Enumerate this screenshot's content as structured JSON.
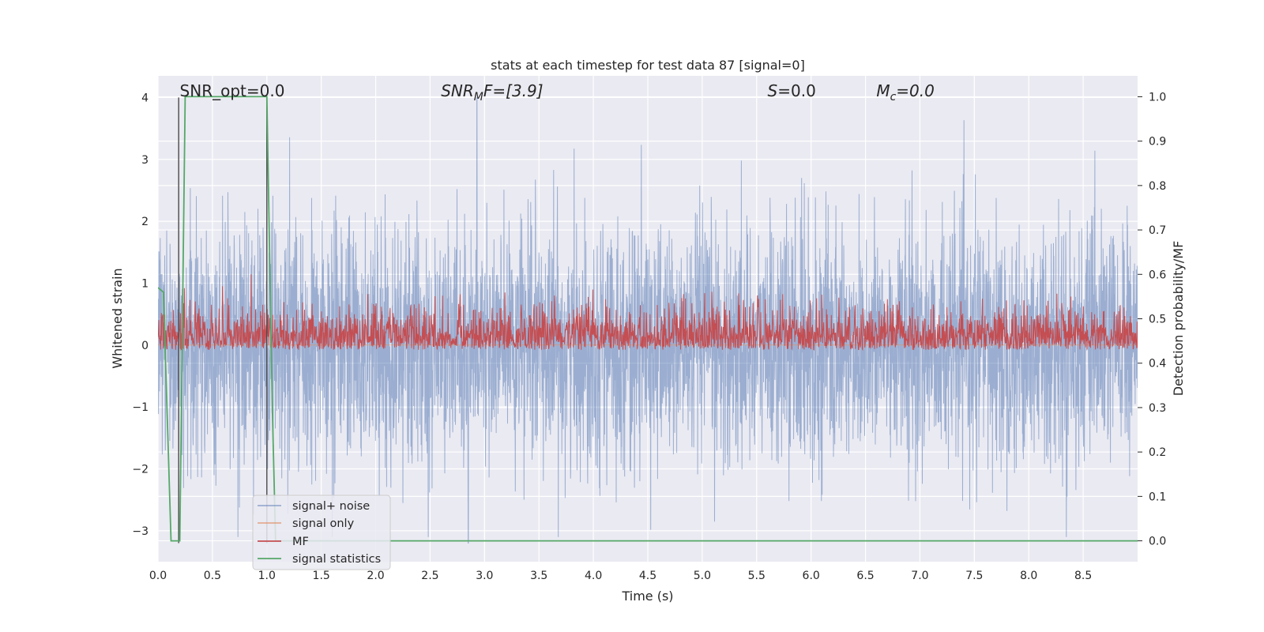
{
  "chart_data": {
    "type": "line",
    "title": "stats at each timestep for test data 87 [signal=0]",
    "xlabel": "Time (s)",
    "ylabel_left": "Whitened strain",
    "ylabel_right": "Detection probability/MF",
    "xlim": [
      0.0,
      9.0
    ],
    "ylim_left": [
      -3.5,
      4.35
    ],
    "ylim_right": [
      -0.047,
      1.047
    ],
    "x_ticks": [
      "0.0",
      "0.5",
      "1.0",
      "1.5",
      "2.0",
      "2.5",
      "3.0",
      "3.5",
      "4.0",
      "4.5",
      "5.0",
      "5.5",
      "6.0",
      "6.5",
      "7.0",
      "7.5",
      "8.0",
      "8.5"
    ],
    "y_ticks_left": [
      "4",
      "3",
      "2",
      "1",
      "0",
      "−1",
      "−2",
      "−3"
    ],
    "y_ticks_right": [
      "1.0",
      "0.9",
      "0.8",
      "0.7",
      "0.6",
      "0.5",
      "0.4",
      "0.3",
      "0.2",
      "0.1",
      "0.0"
    ],
    "grid": true,
    "legend_position": "lower-left",
    "annotations": [
      {
        "prefix": "SNR_opt=0.0",
        "sub": "",
        "suffix": "",
        "italic": false,
        "x": 0.2
      },
      {
        "prefix": "SNR",
        "sub": "M",
        "suffix": "F=[3.9]",
        "italic": true,
        "x": 2.6
      },
      {
        "prefix": "S",
        "sub": "",
        "suffix": "=0.0",
        "italic": true,
        "x": 5.6
      },
      {
        "prefix": "M",
        "sub": "c",
        "suffix": "=0.0",
        "italic": true,
        "x": 6.6
      }
    ],
    "vlines": [
      0.19,
      1.0
    ],
    "series": [
      {
        "name": "signal+ noise",
        "color": "#4c72b0",
        "alpha": 0.5,
        "axis": "left",
        "description": "whitened noise, spikes up to about 4.0 near t=2.93 and down to about -3.2 near t=2.85",
        "amplitude_range": [
          -3.2,
          4.0
        ]
      },
      {
        "name": "signal only",
        "color": "#dd8452",
        "alpha": 0.5,
        "axis": "left",
        "values": "flat at 0"
      },
      {
        "name": "MF",
        "color": "#c44e52",
        "axis": "right",
        "baseline": 0.43,
        "range": [
          0.43,
          0.6
        ]
      },
      {
        "name": "signal statistics",
        "color": "#55a868",
        "axis": "right",
        "x": [
          0.0,
          0.05,
          0.12,
          0.2,
          0.25,
          1.0,
          1.05,
          1.08,
          1.15,
          9.0
        ],
        "values": [
          0.57,
          0.56,
          0.0,
          0.0,
          1.0,
          1.0,
          0.3,
          0.0,
          0.0,
          0.0
        ]
      }
    ]
  }
}
